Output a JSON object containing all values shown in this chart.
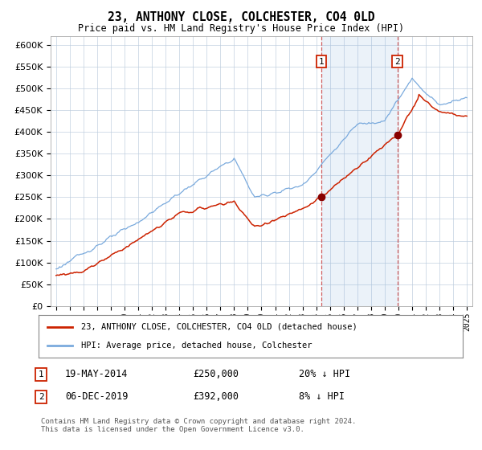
{
  "title": "23, ANTHONY CLOSE, COLCHESTER, CO4 0LD",
  "subtitle": "Price paid vs. HM Land Registry's House Price Index (HPI)",
  "hpi_color": "#7aaadd",
  "price_color": "#cc2200",
  "shade_color": "#ddeeff",
  "marker_color": "#880000",
  "grid_color": "#bbccdd",
  "background_color": "#ffffff",
  "sale1_date": 2014.38,
  "sale1_price": 250000,
  "sale2_date": 2019.92,
  "sale2_price": 392000,
  "ylim": [
    0,
    620000
  ],
  "yticks": [
    0,
    50000,
    100000,
    150000,
    200000,
    250000,
    300000,
    350000,
    400000,
    450000,
    500000,
    550000,
    600000
  ],
  "xlim": [
    1994.6,
    2025.4
  ],
  "legend_entry1": "23, ANTHONY CLOSE, COLCHESTER, CO4 0LD (detached house)",
  "legend_entry2": "HPI: Average price, detached house, Colchester",
  "note1_num": "1",
  "note1_date": "19-MAY-2014",
  "note1_price": "£250,000",
  "note1_pct": "20% ↓ HPI",
  "note2_num": "2",
  "note2_date": "06-DEC-2019",
  "note2_price": "£392,000",
  "note2_pct": "8% ↓ HPI",
  "footer": "Contains HM Land Registry data © Crown copyright and database right 2024.\nThis data is licensed under the Open Government Licence v3.0."
}
